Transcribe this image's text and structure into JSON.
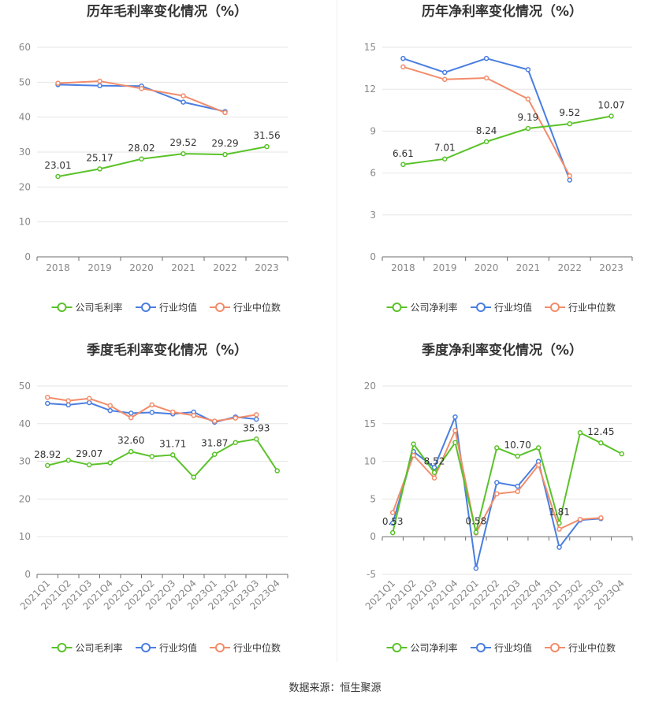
{
  "source_text": "数据来源：恒生聚源",
  "colors": {
    "company": "#5ac229",
    "avg": "#4a7ee0",
    "median": "#f28c6a"
  },
  "chart_data": [
    {
      "type": "line",
      "title": "历年毛利率变化情况（%）",
      "categories": [
        "2018",
        "2019",
        "2020",
        "2021",
        "2022",
        "2023"
      ],
      "ylim": [
        0,
        60
      ],
      "yticks": [
        0,
        10,
        20,
        30,
        40,
        50,
        60
      ],
      "series": [
        {
          "name": "公司毛利率",
          "key": "company",
          "values": [
            23.01,
            25.17,
            28.02,
            29.52,
            29.29,
            31.56
          ],
          "labels": [
            "23.01",
            "25.17",
            "28.02",
            "29.52",
            "29.29",
            "31.56"
          ]
        },
        {
          "name": "行业均值",
          "key": "avg",
          "values": [
            49.3,
            49.0,
            48.9,
            44.3,
            41.6,
            null
          ]
        },
        {
          "name": "行业中位数",
          "key": "median",
          "values": [
            49.7,
            50.3,
            48.2,
            46.1,
            41.3,
            null
          ]
        }
      ]
    },
    {
      "type": "line",
      "title": "历年净利率变化情况（%）",
      "categories": [
        "2018",
        "2019",
        "2020",
        "2021",
        "2022",
        "2023"
      ],
      "ylim": [
        0,
        15
      ],
      "yticks": [
        0,
        3,
        6,
        9,
        12,
        15
      ],
      "series": [
        {
          "name": "公司净利率",
          "key": "company",
          "values": [
            6.61,
            7.01,
            8.24,
            9.19,
            9.52,
            10.07
          ],
          "labels": [
            "6.61",
            "7.01",
            "8.24",
            "9.19",
            "9.52",
            "10.07"
          ]
        },
        {
          "name": "行业均值",
          "key": "avg",
          "values": [
            14.2,
            13.2,
            14.2,
            13.4,
            5.5,
            null
          ]
        },
        {
          "name": "行业中位数",
          "key": "median",
          "values": [
            13.6,
            12.7,
            12.8,
            11.3,
            5.8,
            null
          ]
        }
      ]
    },
    {
      "type": "line",
      "title": "季度毛利率变化情况（%）",
      "categories": [
        "2021Q1",
        "2021Q2",
        "2021Q3",
        "2021Q4",
        "2022Q1",
        "2022Q2",
        "2022Q3",
        "2022Q4",
        "2023Q1",
        "2023Q2",
        "2023Q3",
        "2023Q4"
      ],
      "ylim": [
        0,
        50
      ],
      "yticks": [
        0,
        10,
        20,
        30,
        40,
        50
      ],
      "rotate_x": true,
      "series": [
        {
          "name": "公司毛利率",
          "key": "company",
          "values": [
            28.92,
            30.3,
            29.07,
            29.6,
            32.6,
            31.3,
            31.71,
            25.8,
            31.87,
            35.0,
            35.93,
            27.5
          ],
          "labels": [
            "28.92",
            null,
            "29.07",
            null,
            "32.60",
            null,
            "31.71",
            null,
            "31.87",
            null,
            "35.93",
            null
          ]
        },
        {
          "name": "行业均值",
          "key": "avg",
          "values": [
            45.4,
            45.0,
            45.6,
            43.5,
            42.8,
            43.0,
            42.6,
            43.1,
            40.4,
            41.8,
            41.2,
            null
          ]
        },
        {
          "name": "行业中位数",
          "key": "median",
          "values": [
            47.0,
            46.1,
            46.7,
            44.8,
            41.6,
            45.0,
            43.1,
            42.2,
            40.7,
            41.5,
            42.4,
            null
          ]
        }
      ]
    },
    {
      "type": "line",
      "title": "季度净利率变化情况（%）",
      "categories": [
        "2021Q1",
        "2021Q2",
        "2021Q3",
        "2021Q4",
        "2022Q1",
        "2022Q2",
        "2022Q3",
        "2022Q4",
        "2023Q1",
        "2023Q2",
        "2023Q3",
        "2023Q4"
      ],
      "ylim": [
        -5,
        20
      ],
      "yticks": [
        -5,
        0,
        5,
        10,
        15,
        20
      ],
      "rotate_x": true,
      "series": [
        {
          "name": "公司净利率",
          "key": "company",
          "values": [
            0.53,
            12.3,
            8.52,
            12.5,
            0.58,
            11.8,
            10.7,
            11.8,
            1.81,
            13.8,
            12.45,
            11.0
          ],
          "labels": [
            "0.53",
            null,
            "8.52",
            null,
            "0.58",
            null,
            "10.70",
            null,
            "1.81",
            null,
            "12.45",
            null
          ]
        },
        {
          "name": "行业均值",
          "key": "avg",
          "values": [
            1.8,
            11.3,
            9.2,
            15.9,
            -4.2,
            7.2,
            6.7,
            10.0,
            -1.4,
            2.2,
            2.4,
            null
          ]
        },
        {
          "name": "行业中位数",
          "key": "median",
          "values": [
            3.2,
            10.8,
            7.8,
            14.1,
            0.5,
            5.7,
            6.0,
            9.5,
            1.0,
            2.3,
            2.5,
            null
          ]
        }
      ]
    }
  ]
}
